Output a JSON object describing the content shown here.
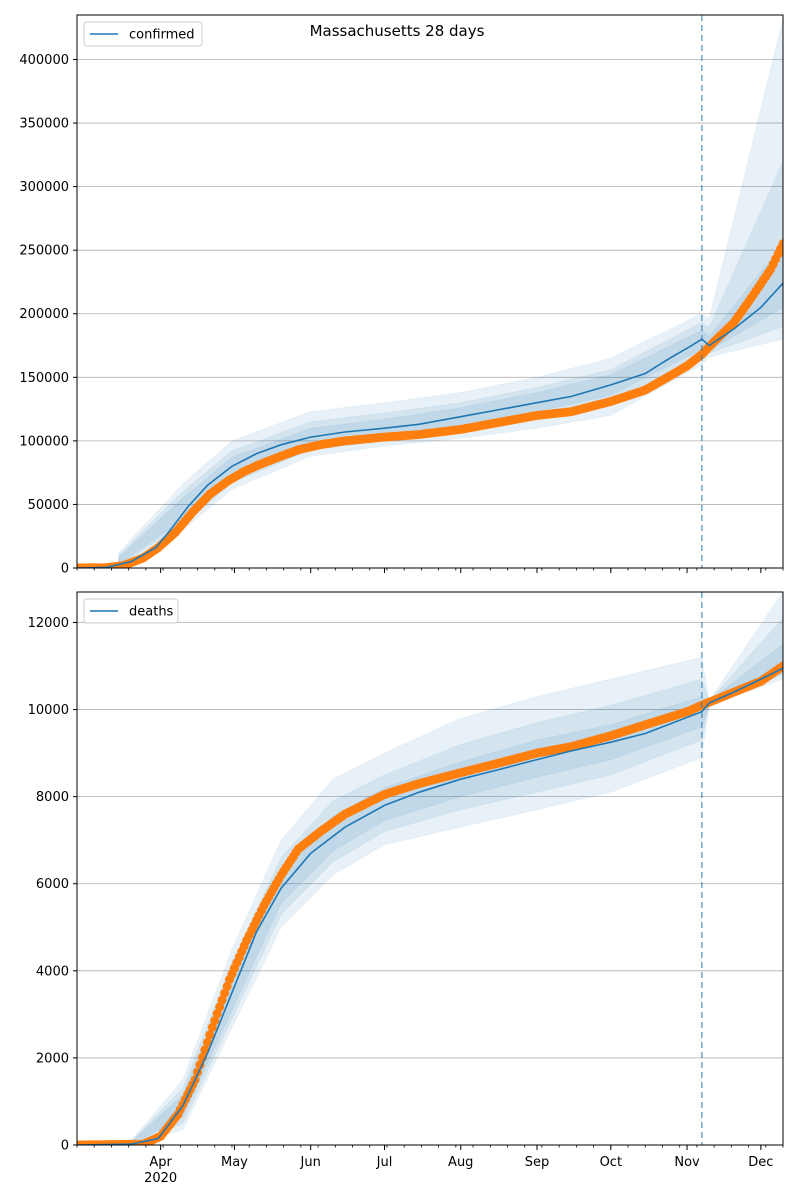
{
  "chart_data": [
    {
      "type": "line",
      "title": "Massachusetts 28 days",
      "xlabel": "",
      "ylabel": "",
      "ylim": [
        0,
        435000
      ],
      "yticks": [
        0,
        50000,
        100000,
        150000,
        200000,
        250000,
        300000,
        350000,
        400000
      ],
      "ytick_labels": [
        "0",
        "50000",
        "100000",
        "150000",
        "200000",
        "250000",
        "300000",
        "350000",
        "400000"
      ],
      "grid": "horizontal",
      "legend": {
        "placement": "top-left",
        "entries": [
          "confirmed"
        ]
      },
      "forecast_start": "2020-11-07",
      "series": [
        {
          "name": "confirmed",
          "kind": "model-fit",
          "color": "#1f77b4",
          "points": [
            [
              "2020-02-27",
              0
            ],
            [
              "2020-03-10",
              500
            ],
            [
              "2020-03-20",
              5000
            ],
            [
              "2020-03-30",
              16000
            ],
            [
              "2020-04-05",
              30000
            ],
            [
              "2020-04-12",
              48000
            ],
            [
              "2020-04-20",
              65000
            ],
            [
              "2020-04-30",
              80000
            ],
            [
              "2020-05-10",
              90000
            ],
            [
              "2020-05-20",
              97000
            ],
            [
              "2020-06-01",
              103000
            ],
            [
              "2020-06-15",
              107000
            ],
            [
              "2020-07-01",
              110000
            ],
            [
              "2020-07-15",
              113000
            ],
            [
              "2020-08-01",
              119000
            ],
            [
              "2020-08-15",
              124000
            ],
            [
              "2020-09-01",
              130000
            ],
            [
              "2020-09-15",
              135000
            ],
            [
              "2020-10-01",
              144000
            ],
            [
              "2020-10-15",
              153000
            ],
            [
              "2020-10-25",
              165000
            ],
            [
              "2020-11-02",
              174000
            ],
            [
              "2020-11-07",
              180000
            ],
            [
              "2020-11-10",
              175000
            ],
            [
              "2020-11-20",
              188000
            ],
            [
              "2020-12-01",
              205000
            ],
            [
              "2020-12-10",
              224000
            ]
          ]
        },
        {
          "name": "",
          "kind": "observed",
          "color": "#ff7f0e",
          "points": [
            [
              "2020-02-27",
              0
            ],
            [
              "2020-03-10",
              300
            ],
            [
              "2020-03-17",
              2000
            ],
            [
              "2020-03-25",
              8000
            ],
            [
              "2020-03-31",
              16000
            ],
            [
              "2020-04-07",
              28000
            ],
            [
              "2020-04-14",
              44000
            ],
            [
              "2020-04-21",
              58000
            ],
            [
              "2020-04-28",
              68000
            ],
            [
              "2020-05-05",
              76000
            ],
            [
              "2020-05-12",
              82000
            ],
            [
              "2020-05-20",
              88000
            ],
            [
              "2020-05-27",
              93000
            ],
            [
              "2020-06-05",
              97000
            ],
            [
              "2020-06-15",
              100000
            ],
            [
              "2020-07-01",
              103000
            ],
            [
              "2020-07-15",
              105000
            ],
            [
              "2020-08-01",
              109000
            ],
            [
              "2020-08-15",
              114000
            ],
            [
              "2020-09-01",
              120000
            ],
            [
              "2020-09-15",
              123000
            ],
            [
              "2020-10-01",
              131000
            ],
            [
              "2020-10-15",
              140000
            ],
            [
              "2020-10-25",
              151000
            ],
            [
              "2020-11-01",
              159000
            ],
            [
              "2020-11-07",
              168000
            ],
            [
              "2020-11-12",
              178000
            ],
            [
              "2020-11-20",
              193000
            ],
            [
              "2020-11-28",
              215000
            ],
            [
              "2020-12-05",
              235000
            ],
            [
              "2020-12-10",
              255000
            ]
          ]
        }
      ],
      "bands": [
        {
          "points": [
            [
              "2020-03-15",
              1000,
              12000
            ],
            [
              "2020-04-10",
              30000,
              66000
            ],
            [
              "2020-04-30",
              62000,
              100000
            ],
            [
              "2020-06-01",
              88000,
              123000
            ],
            [
              "2020-07-01",
              96000,
              130000
            ],
            [
              "2020-08-01",
              102000,
              138000
            ],
            [
              "2020-09-01",
              110000,
              150000
            ],
            [
              "2020-10-01",
              120000,
              165000
            ],
            [
              "2020-11-07",
              160000,
              200000
            ],
            [
              "2020-11-10",
              166000,
              196000
            ],
            [
              "2020-12-10",
              180000,
              432000
            ]
          ]
        },
        {
          "points": [
            [
              "2020-03-15",
              2000,
              10000
            ],
            [
              "2020-04-10",
              34000,
              60000
            ],
            [
              "2020-04-30",
              67000,
              92000
            ],
            [
              "2020-06-01",
              93000,
              115000
            ],
            [
              "2020-07-01",
              100000,
              122000
            ],
            [
              "2020-08-01",
              107000,
              130000
            ],
            [
              "2020-09-01",
              117000,
              142000
            ],
            [
              "2020-10-01",
              128000,
              156000
            ],
            [
              "2020-11-07",
              167000,
              193000
            ],
            [
              "2020-11-10",
              169000,
              189000
            ],
            [
              "2020-12-10",
              190000,
              320000
            ]
          ]
        },
        {
          "points": [
            [
              "2020-03-15",
              3000,
              8000
            ],
            [
              "2020-04-10",
              38000,
              55000
            ],
            [
              "2020-04-30",
              72000,
              87000
            ],
            [
              "2020-06-01",
              97000,
              110000
            ],
            [
              "2020-07-01",
              104000,
              117000
            ],
            [
              "2020-08-01",
              112000,
              126000
            ],
            [
              "2020-09-01",
              123000,
              138000
            ],
            [
              "2020-10-01",
              136000,
              152000
            ],
            [
              "2020-11-07",
              172000,
              187000
            ],
            [
              "2020-11-10",
              171000,
              182000
            ],
            [
              "2020-12-10",
              205000,
              255000
            ]
          ]
        }
      ]
    },
    {
      "type": "line",
      "title": "",
      "xlabel": "",
      "ylabel": "",
      "ylim": [
        0,
        12700
      ],
      "yticks": [
        0,
        2000,
        4000,
        6000,
        8000,
        10000,
        12000
      ],
      "ytick_labels": [
        "0",
        "2000",
        "4000",
        "6000",
        "8000",
        "10000",
        "12000"
      ],
      "grid": "horizontal",
      "legend": {
        "placement": "top-left",
        "entries": [
          "deaths"
        ]
      },
      "forecast_start": "2020-11-07",
      "xticks": [
        "Apr",
        "May",
        "Jun",
        "Jul",
        "Aug",
        "Sep",
        "Oct",
        "Nov",
        "Dec"
      ],
      "xtick_dates": [
        "2020-04-01",
        "2020-05-01",
        "2020-06-01",
        "2020-07-01",
        "2020-08-01",
        "2020-09-01",
        "2020-10-01",
        "2020-11-01",
        "2020-12-01"
      ],
      "xtick_sublabel": "2020",
      "xlim": [
        "2020-02-27",
        "2020-12-10"
      ],
      "series": [
        {
          "name": "deaths",
          "kind": "model-fit",
          "color": "#1f77b4",
          "points": [
            [
              "2020-02-27",
              0
            ],
            [
              "2020-03-20",
              20
            ],
            [
              "2020-03-31",
              150
            ],
            [
              "2020-04-10",
              900
            ],
            [
              "2020-04-20",
              2100
            ],
            [
              "2020-04-30",
              3500
            ],
            [
              "2020-05-10",
              4900
            ],
            [
              "2020-05-20",
              5900
            ],
            [
              "2020-06-01",
              6700
            ],
            [
              "2020-06-15",
              7300
            ],
            [
              "2020-07-01",
              7800
            ],
            [
              "2020-07-15",
              8100
            ],
            [
              "2020-08-01",
              8400
            ],
            [
              "2020-08-15",
              8600
            ],
            [
              "2020-09-01",
              8850
            ],
            [
              "2020-09-15",
              9050
            ],
            [
              "2020-10-01",
              9250
            ],
            [
              "2020-10-15",
              9450
            ],
            [
              "2020-11-07",
              9950
            ],
            [
              "2020-11-10",
              10150
            ],
            [
              "2020-11-20",
              10400
            ],
            [
              "2020-12-01",
              10700
            ],
            [
              "2020-12-10",
              10950
            ]
          ]
        },
        {
          "name": "",
          "kind": "observed",
          "color": "#ff7f0e",
          "points": [
            [
              "2020-02-27",
              0
            ],
            [
              "2020-03-25",
              20
            ],
            [
              "2020-04-01",
              200
            ],
            [
              "2020-04-08",
              700
            ],
            [
              "2020-04-15",
              1500
            ],
            [
              "2020-04-22",
              2700
            ],
            [
              "2020-04-29",
              3800
            ],
            [
              "2020-05-06",
              4700
            ],
            [
              "2020-05-13",
              5500
            ],
            [
              "2020-05-20",
              6200
            ],
            [
              "2020-05-27",
              6800
            ],
            [
              "2020-06-05",
              7200
            ],
            [
              "2020-06-15",
              7600
            ],
            [
              "2020-07-01",
              8050
            ],
            [
              "2020-07-15",
              8300
            ],
            [
              "2020-08-01",
              8550
            ],
            [
              "2020-08-15",
              8750
            ],
            [
              "2020-09-01",
              9000
            ],
            [
              "2020-09-15",
              9150
            ],
            [
              "2020-10-01",
              9400
            ],
            [
              "2020-10-15",
              9650
            ],
            [
              "2020-11-01",
              9950
            ],
            [
              "2020-11-07",
              10100
            ],
            [
              "2020-11-20",
              10400
            ],
            [
              "2020-12-01",
              10650
            ],
            [
              "2020-12-10",
              11000
            ]
          ]
        }
      ],
      "bands": [
        {
          "points": [
            [
              "2020-03-20",
              0,
              100
            ],
            [
              "2020-04-10",
              350,
              1500
            ],
            [
              "2020-04-30",
              2700,
              4500
            ],
            [
              "2020-05-20",
              5000,
              7000
            ],
            [
              "2020-06-10",
              6200,
              8400
            ],
            [
              "2020-07-01",
              6900,
              9000
            ],
            [
              "2020-08-01",
              7300,
              9800
            ],
            [
              "2020-09-01",
              7700,
              10300
            ],
            [
              "2020-10-01",
              8100,
              10700
            ],
            [
              "2020-11-07",
              8900,
              11200
            ],
            [
              "2020-11-10",
              10100,
              10200
            ],
            [
              "2020-12-10",
              10700,
              12700
            ]
          ]
        },
        {
          "points": [
            [
              "2020-03-20",
              0,
              80
            ],
            [
              "2020-04-10",
              500,
              1300
            ],
            [
              "2020-04-30",
              2900,
              4200
            ],
            [
              "2020-05-20",
              5300,
              6600
            ],
            [
              "2020-06-10",
              6500,
              7900
            ],
            [
              "2020-07-01",
              7200,
              8500
            ],
            [
              "2020-08-01",
              7700,
              9200
            ],
            [
              "2020-09-01",
              8100,
              9700
            ],
            [
              "2020-10-01",
              8500,
              10100
            ],
            [
              "2020-11-07",
              9300,
              10700
            ],
            [
              "2020-11-10",
              10100,
              10200
            ],
            [
              "2020-12-10",
              10800,
              12100
            ]
          ]
        },
        {
          "points": [
            [
              "2020-03-20",
              0,
              60
            ],
            [
              "2020-04-10",
              650,
              1150
            ],
            [
              "2020-04-30",
              3100,
              3950
            ],
            [
              "2020-05-20",
              5550,
              6300
            ],
            [
              "2020-06-10",
              6750,
              7550
            ],
            [
              "2020-07-01",
              7450,
              8200
            ],
            [
              "2020-08-01",
              8000,
              8800
            ],
            [
              "2020-09-01",
              8450,
              9300
            ],
            [
              "2020-10-01",
              8850,
              9650
            ],
            [
              "2020-11-07",
              9600,
              10300
            ],
            [
              "2020-11-10",
              10100,
              10200
            ],
            [
              "2020-12-10",
              10850,
              11500
            ]
          ]
        }
      ]
    }
  ]
}
